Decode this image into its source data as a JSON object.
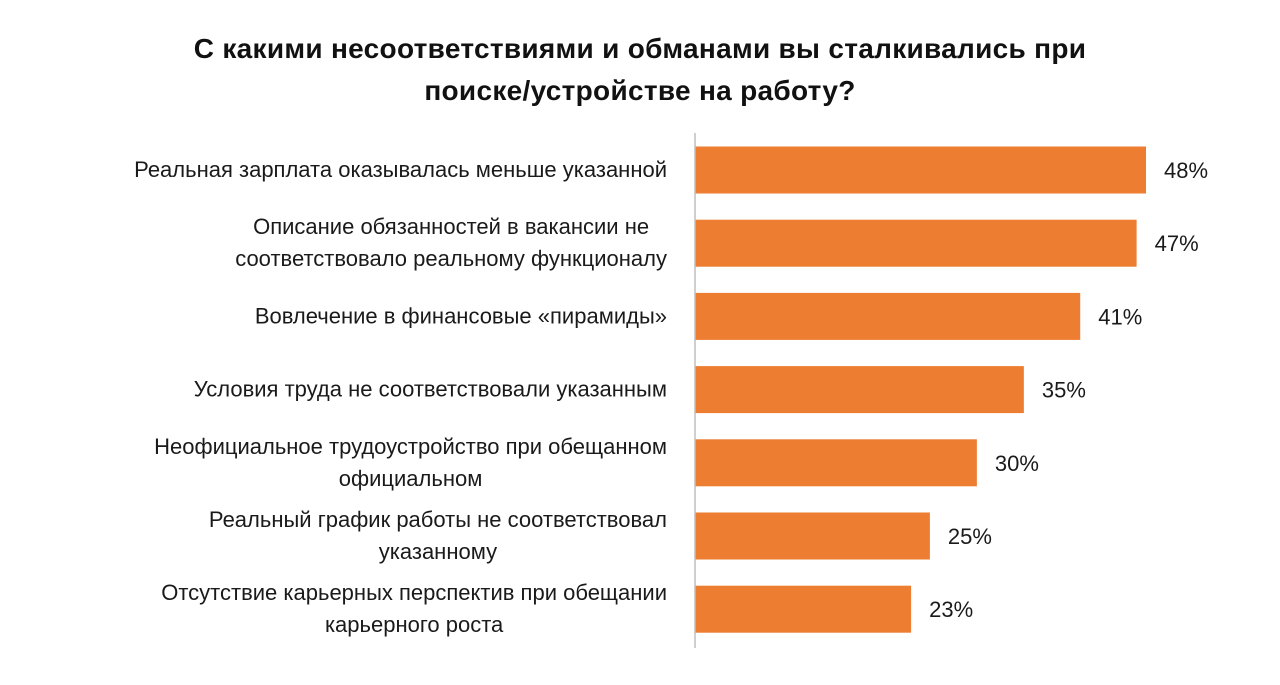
{
  "chart_data": {
    "type": "bar",
    "orientation": "horizontal",
    "title_lines": [
      "С какими несоответствиями и обманами вы сталкивались при",
      "поиске/устройстве на работу?"
    ],
    "categories": [
      [
        "Реальная зарплата оказывалась меньше указанной"
      ],
      [
        "Описание обязанностей в вакансии не",
        "соответствовало реальному функционалу"
      ],
      [
        "Вовлечение в финансовые «пирамиды»"
      ],
      [
        "Условия труда не соответствовали указанным"
      ],
      [
        "Неофициальное трудоустройство при обещанном",
        "официальном"
      ],
      [
        "Реальный график работы не соответствовал",
        "указанному"
      ],
      [
        "Отсутствие карьерных перспектив при обещании",
        "карьерного роста"
      ]
    ],
    "values": [
      48,
      47,
      41,
      35,
      30,
      25,
      23
    ],
    "value_labels": [
      "48%",
      "47%",
      "41%",
      "35%",
      "30%",
      "25%",
      "23%"
    ],
    "xlim": [
      0,
      48
    ],
    "grid": false,
    "legend": "none",
    "colors": {
      "bar": "#ED7D31",
      "axis": "#BFBFBF"
    }
  }
}
